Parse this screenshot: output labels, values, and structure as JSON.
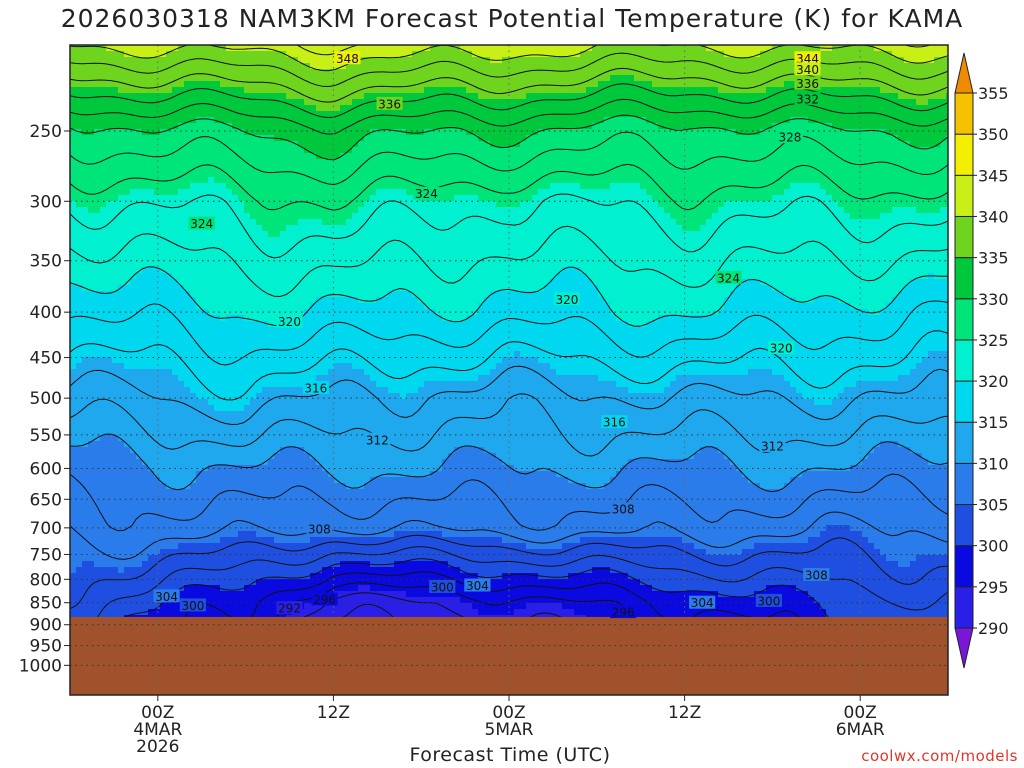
{
  "title": "2026030318 NAM3KM Forecast Potential Temperature (K) for KAMA",
  "credit": "coolwx.com/models",
  "colors": {
    "ground": "#a0522d",
    "contour": "#111111"
  },
  "chart_data": {
    "type": "contour",
    "title": "2026030318 NAM3KM Forecast Potential Temperature (K) for KAMA",
    "xlabel": "Forecast Time (UTC)",
    "ylabel": "",
    "y_scale": "log-pressure (hPa), inverted",
    "ylim": [
      1080,
      200
    ],
    "xlim_hours": [
      -5,
      45
    ],
    "y_ticks": [
      250,
      300,
      350,
      400,
      450,
      500,
      550,
      600,
      650,
      700,
      750,
      800,
      850,
      900,
      950,
      1000
    ],
    "x_ticks": [
      {
        "hour": 0,
        "lines": [
          "00Z",
          "4MAR",
          "2026"
        ]
      },
      {
        "hour": 10,
        "lines": [
          "12Z"
        ]
      },
      {
        "hour": 20,
        "lines": [
          "00Z",
          "5MAR"
        ]
      },
      {
        "hour": 30,
        "lines": [
          "12Z"
        ]
      },
      {
        "hour": 40,
        "lines": [
          "00Z",
          "6MAR"
        ]
      }
    ],
    "grid": true,
    "surface_pressure_hPa": 882,
    "colorbar": {
      "levels": [
        290,
        295,
        300,
        305,
        310,
        315,
        320,
        325,
        330,
        335,
        340,
        345,
        350,
        355
      ],
      "colors": [
        "#7a16d8",
        "#2a1fe8",
        "#0a0ae0",
        "#1f4fe0",
        "#2a7cea",
        "#1fa8ee",
        "#00d8f0",
        "#00f0d0",
        "#00e57a",
        "#00c83c",
        "#6ed41e",
        "#c8f016",
        "#f4ee00",
        "#f4c200",
        "#f08a00"
      ]
    },
    "theta_profiles": [
      {
        "hour": -5,
        "p850": 303,
        "p700": 307,
        "p600": 309,
        "p500": 313,
        "p400": 318,
        "p300": 324,
        "p250": 329
      },
      {
        "hour": 5,
        "p850": 298,
        "p700": 307,
        "p600": 310,
        "p500": 315,
        "p400": 320,
        "p300": 325,
        "p250": 330
      },
      {
        "hour": 10,
        "p850": 293,
        "p700": 306,
        "p600": 310,
        "p500": 314,
        "p400": 320,
        "p300": 326,
        "p250": 331
      },
      {
        "hour": 20,
        "p850": 295,
        "p700": 307,
        "p600": 310,
        "p500": 313,
        "p400": 319,
        "p300": 324,
        "p250": 330
      },
      {
        "hour": 30,
        "p850": 298,
        "p700": 307,
        "p600": 310,
        "p500": 314,
        "p400": 320,
        "p300": 325,
        "p250": 329
      },
      {
        "hour": 40,
        "p850": 301,
        "p700": 306,
        "p600": 310,
        "p500": 314,
        "p400": 319,
        "p300": 325,
        "p250": 330
      },
      {
        "hour": 45,
        "p850": 302,
        "p700": 306,
        "p600": 309,
        "p500": 314,
        "p400": 318,
        "p300": 325,
        "p250": 330
      }
    ],
    "contour_labels": [
      {
        "value": "348",
        "hour": 10.8,
        "p": 207
      },
      {
        "value": "344",
        "hour": 37.0,
        "p": 207
      },
      {
        "value": "340",
        "hour": 37.0,
        "p": 213
      },
      {
        "value": "336",
        "hour": 37.0,
        "p": 221
      },
      {
        "value": "336",
        "hour": 13.2,
        "p": 233
      },
      {
        "value": "332",
        "hour": 37.0,
        "p": 230
      },
      {
        "value": "328",
        "hour": 36.0,
        "p": 254
      },
      {
        "value": "324",
        "hour": 15.3,
        "p": 294
      },
      {
        "value": "324",
        "hour": 2.5,
        "p": 318
      },
      {
        "value": "324",
        "hour": 32.5,
        "p": 366
      },
      {
        "value": "320",
        "hour": 23.3,
        "p": 387
      },
      {
        "value": "320",
        "hour": 7.5,
        "p": 410
      },
      {
        "value": "320",
        "hour": 35.5,
        "p": 439
      },
      {
        "value": "316",
        "hour": 9.0,
        "p": 487
      },
      {
        "value": "316",
        "hour": 26.0,
        "p": 532
      },
      {
        "value": "312",
        "hour": 12.5,
        "p": 557
      },
      {
        "value": "312",
        "hour": 35.0,
        "p": 566
      },
      {
        "value": "308",
        "hour": 26.5,
        "p": 667
      },
      {
        "value": "308",
        "hour": 9.2,
        "p": 702
      },
      {
        "value": "308",
        "hour": 37.5,
        "p": 791
      },
      {
        "value": "304",
        "hour": 18.2,
        "p": 813
      },
      {
        "value": "304",
        "hour": 0.5,
        "p": 836
      },
      {
        "value": "304",
        "hour": 31.0,
        "p": 850
      },
      {
        "value": "300",
        "hour": 16.2,
        "p": 816
      },
      {
        "value": "300",
        "hour": 2.0,
        "p": 856
      },
      {
        "value": "300",
        "hour": 34.8,
        "p": 846
      },
      {
        "value": "296",
        "hour": 9.5,
        "p": 843
      },
      {
        "value": "296",
        "hour": 26.5,
        "p": 871
      },
      {
        "value": "292",
        "hour": 7.5,
        "p": 862
      }
    ]
  }
}
